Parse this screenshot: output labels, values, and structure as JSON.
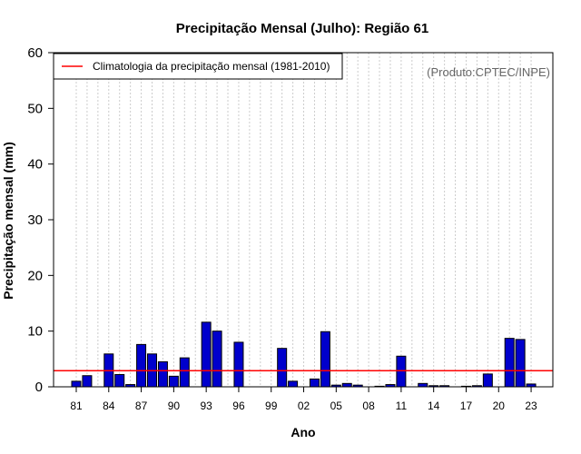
{
  "chart_data": {
    "type": "bar",
    "title": "Precipitação Mensal (Julho): Região 61",
    "xlabel": "Ano",
    "ylabel": "Precipitação mensal (mm)",
    "ylim": [
      0,
      60
    ],
    "yticks": [
      0,
      10,
      20,
      30,
      40,
      50,
      60
    ],
    "xtick_labels": [
      "81",
      "84",
      "87",
      "90",
      "93",
      "96",
      "99",
      "02",
      "05",
      "08",
      "11",
      "14",
      "17",
      "20",
      "23"
    ],
    "x": [
      1981,
      1982,
      1983,
      1984,
      1985,
      1986,
      1987,
      1988,
      1989,
      1990,
      1991,
      1992,
      1993,
      1994,
      1995,
      1996,
      1997,
      1998,
      1999,
      2000,
      2001,
      2002,
      2003,
      2004,
      2005,
      2006,
      2007,
      2008,
      2009,
      2010,
      2011,
      2012,
      2013,
      2014,
      2015,
      2016,
      2017,
      2018,
      2019,
      2020,
      2021,
      2022,
      2023
    ],
    "series": [
      {
        "values": [
          1.0,
          2.0,
          0,
          5.9,
          2.2,
          0.4,
          7.6,
          5.9,
          4.5,
          1.9,
          5.2,
          0,
          11.6,
          10.0,
          0,
          8.0,
          0,
          0,
          0,
          6.9,
          1.0,
          0,
          1.4,
          9.9,
          0.3,
          0.6,
          0.3,
          0,
          0.1,
          0.4,
          5.5,
          0,
          0.6,
          0.2,
          0.2,
          0,
          0.1,
          0.2,
          2.3,
          0,
          8.7,
          8.5,
          0.5
        ],
        "color": "#0000cc"
      }
    ],
    "climatology": {
      "name": "Climatologia da precipitação mensal (1981-2010)",
      "value": 2.9,
      "color": "#ff0000"
    },
    "source": "(Produto:CPTEC/INPE)",
    "grid": "vertical dotted lines per year",
    "legend_position": "top-left"
  }
}
